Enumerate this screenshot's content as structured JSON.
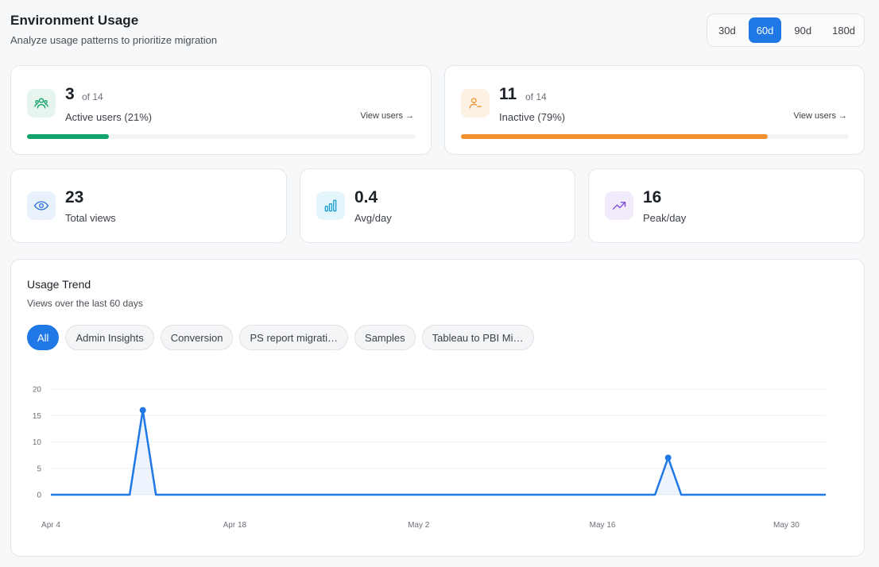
{
  "header": {
    "title": "Environment Usage",
    "subtitle": "Analyze usage patterns to prioritize migration"
  },
  "period": {
    "options": [
      "30d",
      "60d",
      "90d",
      "180d"
    ],
    "selected": "60d"
  },
  "active_card": {
    "value": "3",
    "of": "of 14",
    "label": "Active users (21%)",
    "link": "View users →",
    "progress": 0.21,
    "color": "#10a36b"
  },
  "inactive_card": {
    "value": "11",
    "of": "of 14",
    "label": "Inactive (79%)",
    "link": "View users →",
    "progress": 0.79,
    "color": "#f2922e"
  },
  "stats": [
    {
      "value": "23",
      "label": "Total views",
      "icon": "eye-icon"
    },
    {
      "value": "0.4",
      "label": "Avg/day",
      "icon": "bar-chart-icon"
    },
    {
      "value": "16",
      "label": "Peak/day",
      "icon": "trending-up-icon"
    }
  ],
  "trend": {
    "title": "Usage Trend",
    "subtitle": "Views over the last 60 days",
    "filters": [
      "All",
      "Admin Insights",
      "Conversion",
      "PS report migrati…",
      "Samples",
      "Tableau to PBI Mi…"
    ],
    "active_filter": "All"
  },
  "chart_data": {
    "type": "area",
    "x_ticks": [
      "Apr 4",
      "Apr 18",
      "May 2",
      "May 16",
      "May 30"
    ],
    "y_ticks": [
      0,
      5,
      10,
      15,
      20
    ],
    "ylim": [
      0,
      20
    ],
    "days": 60,
    "values": [
      0,
      0,
      0,
      0,
      0,
      0,
      0,
      16,
      0,
      0,
      0,
      0,
      0,
      0,
      0,
      0,
      0,
      0,
      0,
      0,
      0,
      0,
      0,
      0,
      0,
      0,
      0,
      0,
      0,
      0,
      0,
      0,
      0,
      0,
      0,
      0,
      0,
      0,
      0,
      0,
      0,
      0,
      0,
      0,
      0,
      0,
      0,
      7,
      0,
      0,
      0,
      0,
      0,
      0,
      0,
      0,
      0,
      0,
      0,
      0
    ],
    "grid": true,
    "color": "#1f78e6"
  }
}
